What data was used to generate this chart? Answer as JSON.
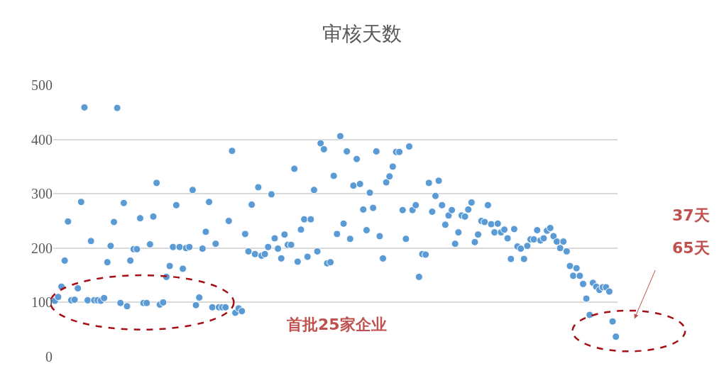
{
  "chart_data": {
    "type": "scatter",
    "title": "审核天数",
    "categories": [
      null,
      null,
      null,
      null,
      null,
      null,
      null,
      null,
      null,
      null,
      null,
      null,
      null,
      null,
      null,
      null,
      null,
      null,
      null,
      null,
      null,
      null,
      null,
      null,
      null,
      null,
      null,
      null,
      null,
      null,
      null,
      null,
      null,
      null,
      null,
      null,
      null,
      null,
      null,
      null,
      null,
      null,
      null,
      null,
      null,
      null,
      null,
      null,
      null,
      null,
      null,
      null,
      null,
      null,
      null,
      null,
      null,
      null,
      null,
      null,
      null,
      null,
      null,
      null,
      null,
      null,
      null,
      null,
      null,
      null,
      null,
      null,
      null,
      null,
      null,
      null,
      null,
      null,
      null,
      null,
      null,
      null,
      null,
      null,
      null,
      null,
      null,
      null,
      null,
      null,
      null,
      null,
      null,
      null,
      null,
      null,
      null,
      null,
      null,
      null,
      null,
      null,
      null,
      null,
      null,
      null,
      null,
      null,
      null,
      null,
      null,
      null,
      null,
      null,
      null,
      null,
      null,
      null,
      null,
      null,
      null,
      null,
      null,
      null,
      null,
      null,
      null,
      null,
      null,
      null,
      null,
      null,
      null,
      null,
      null,
      null,
      null,
      null,
      null,
      null,
      null,
      null,
      null,
      null,
      null,
      null,
      null,
      null,
      null,
      null,
      null,
      null,
      null,
      null,
      null,
      null,
      null,
      null,
      null,
      null,
      null,
      null,
      null,
      null,
      null,
      null,
      null,
      null,
      null,
      null,
      null,
      null
    ],
    "values": [
      103,
      110,
      129,
      177,
      249,
      104,
      105,
      126,
      285,
      459,
      104,
      213,
      104,
      104,
      103,
      108,
      174,
      204,
      248,
      458,
      99,
      283,
      93,
      177,
      198,
      198,
      255,
      99,
      99,
      207,
      258,
      320,
      96,
      100,
      147,
      167,
      202,
      279,
      202,
      162,
      200,
      202,
      307,
      95,
      109,
      199,
      230,
      285,
      91,
      208,
      91,
      91,
      91,
      250,
      379,
      81,
      89,
      84,
      226,
      194,
      280,
      189,
      312,
      186,
      189,
      202,
      299,
      218,
      199,
      181,
      225,
      206,
      206,
      346,
      175,
      234,
      253,
      184,
      253,
      307,
      194,
      393,
      382,
      172,
      174,
      333,
      226,
      406,
      245,
      378,
      217,
      315,
      364,
      318,
      271,
      233,
      302,
      274,
      378,
      222,
      181,
      321,
      332,
      350,
      377,
      377,
      270,
      217,
      387,
      270,
      279,
      147,
      189,
      188,
      320,
      267,
      296,
      324,
      279,
      243,
      260,
      270,
      208,
      229,
      260,
      258,
      271,
      284,
      211,
      225,
      250,
      248,
      279,
      244,
      229,
      245,
      229,
      234,
      218,
      180,
      235,
      203,
      199,
      180,
      204,
      216,
      216,
      233,
      214,
      218,
      232,
      237,
      222,
      212,
      200,
      212,
      194,
      167,
      149,
      163,
      149,
      134,
      107,
      77,
      136,
      129,
      123,
      128,
      128,
      120,
      65,
      37
    ],
    "color": "#5b9bd5",
    "marker": "circle",
    "ylim": [
      0,
      500
    ],
    "yticks": [
      0,
      100,
      200,
      300,
      400,
      500
    ],
    "grid": "y",
    "legend": false,
    "annotations": [
      "首批25家企业",
      "37天",
      "65天"
    ]
  }
}
